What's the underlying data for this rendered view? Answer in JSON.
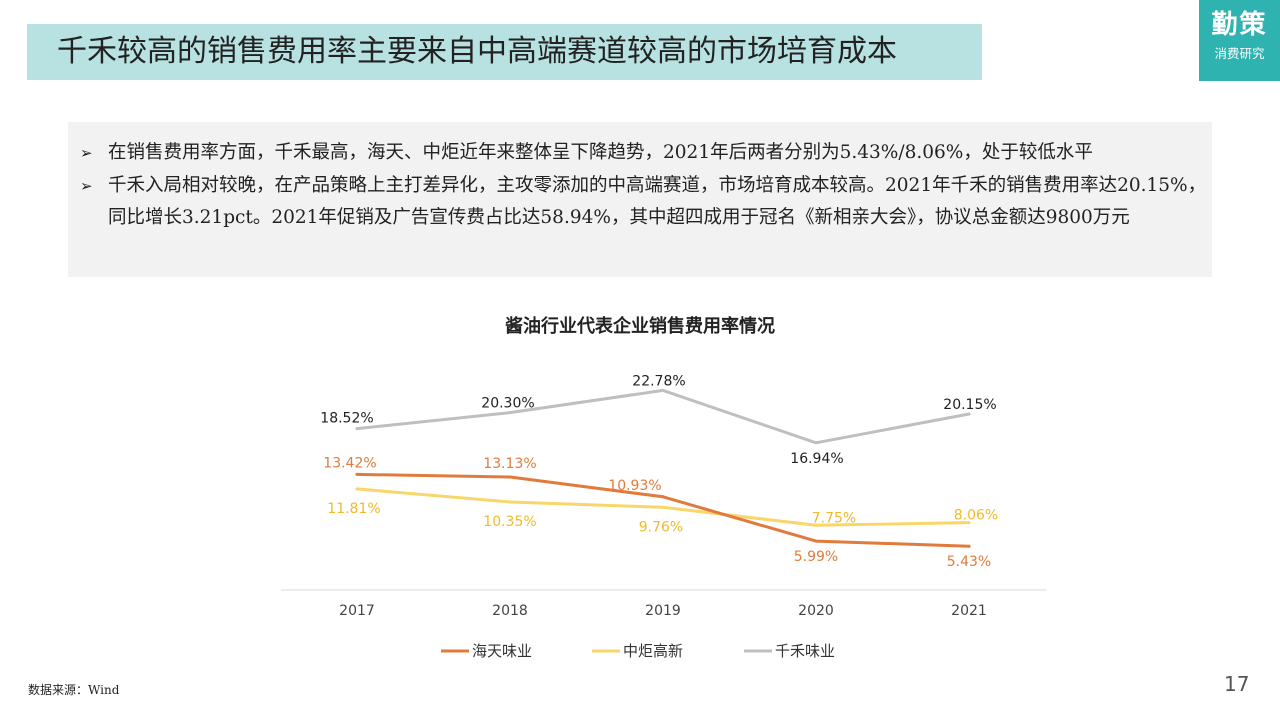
{
  "slide": {
    "title": "千禾较高的销售费用率主要来自中高端赛道较高的市场培育成本",
    "logo_main": "勤策",
    "logo_sub": "消费研究",
    "bullets": [
      "在销售费用率方面，千禾最高，海天、中炬近年来整体呈下降趋势，2021年后两者分别为5.43%/8.06%，处于较低水平",
      "千禾入局相对较晚，在产品策略上主打差异化，主攻零添加的中高端赛道，市场培育成本较高。2021年千禾的销售费用率达20.15%，同比增长3.21pct。2021年促销及广告宣传费占比达58.94%，其中超四成用于冠名《新相亲大会》，协议总金额达9800万元"
    ],
    "bullet_mark": "➢",
    "source": "数据来源：Wind",
    "page_number": "17"
  },
  "colors": {
    "title_bg": "#b8e2e1",
    "logo_bg": "#2fb3b1",
    "notes_bg": "#f2f2f2",
    "haitian": "#e07b3c",
    "zhongju": "#f8d66a",
    "qianhe": "#bfbfbf",
    "zhongju_label": "#f2b92a"
  },
  "chart_data": {
    "type": "line",
    "title": "酱油行业代表企业销售费用率情况",
    "categories": [
      "2017",
      "2018",
      "2019",
      "2020",
      "2021"
    ],
    "unit": "%",
    "ylim": [
      0,
      25
    ],
    "grid": false,
    "legend_position": "bottom",
    "series": [
      {
        "name": "海天味业",
        "values": [
          13.42,
          13.13,
          10.93,
          5.99,
          5.43
        ],
        "labels": [
          "13.42%",
          "13.13%",
          "10.93%",
          "5.99%",
          "5.43%"
        ]
      },
      {
        "name": "中炬高新",
        "values": [
          11.81,
          10.35,
          9.76,
          7.75,
          8.06
        ],
        "labels": [
          "11.81%",
          "10.35%",
          "9.76%",
          "7.75%",
          "8.06%"
        ]
      },
      {
        "name": "千禾味业",
        "values": [
          18.52,
          20.3,
          22.78,
          16.94,
          20.15
        ],
        "labels": [
          "18.52%",
          "20.30%",
          "22.78%",
          "16.94%",
          "20.15%"
        ]
      }
    ]
  }
}
